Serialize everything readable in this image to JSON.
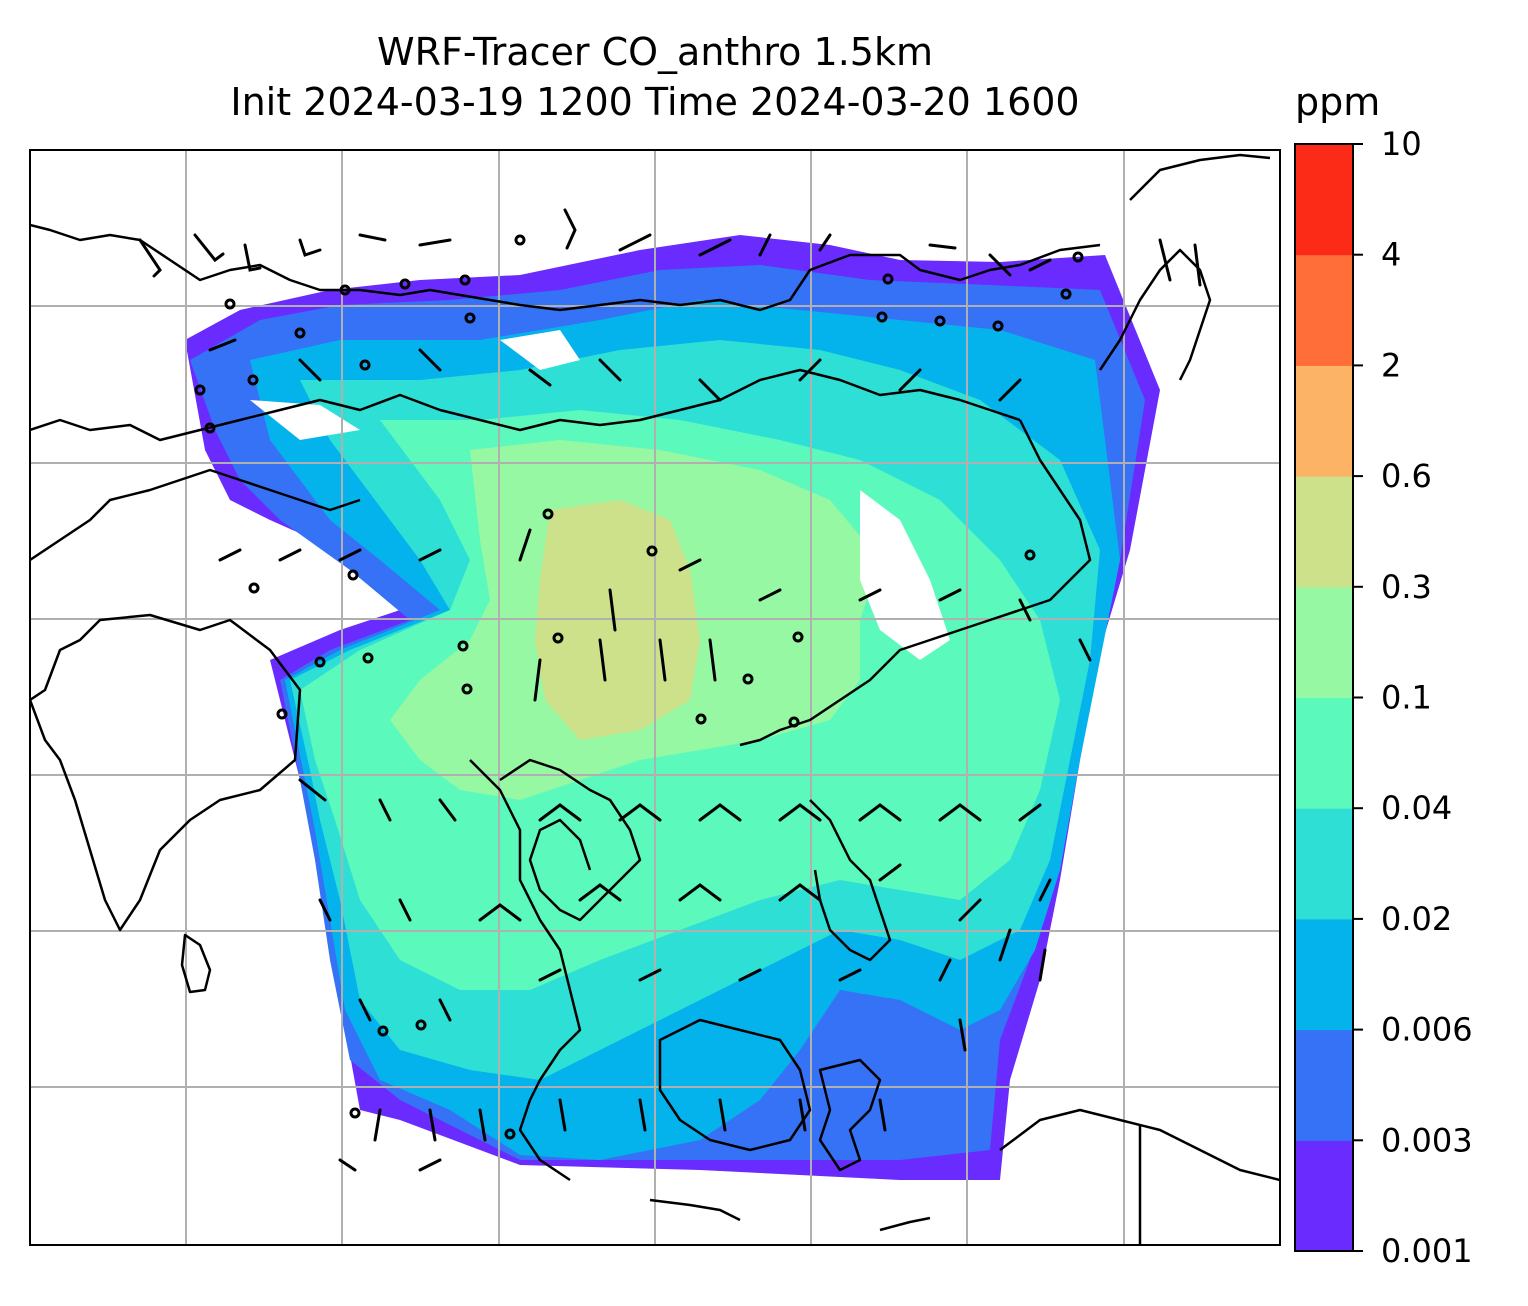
{
  "title": {
    "line1": "WRF-Tracer CO_anthro 1.5km",
    "line2": "Init 2024-03-19 1200 Time 2024-03-20 1600"
  },
  "colorbar": {
    "unit": "ppm",
    "levels": [
      "0.001",
      "0.003",
      "0.006",
      "0.02",
      "0.04",
      "0.1",
      "0.3",
      "0.6",
      "2",
      "4",
      "10"
    ],
    "colors": [
      "#6a2bff",
      "#3572f5",
      "#05b3ec",
      "#2edfd5",
      "#5cf9bd",
      "#96f8a2",
      "#cde08a",
      "#fdb366",
      "#ff6e39",
      "#fc2b17"
    ]
  },
  "map": {
    "gridlines": true,
    "gridline_color": "#b0b0b0",
    "coastline_color": "#000000",
    "wind_barbs": true
  }
}
